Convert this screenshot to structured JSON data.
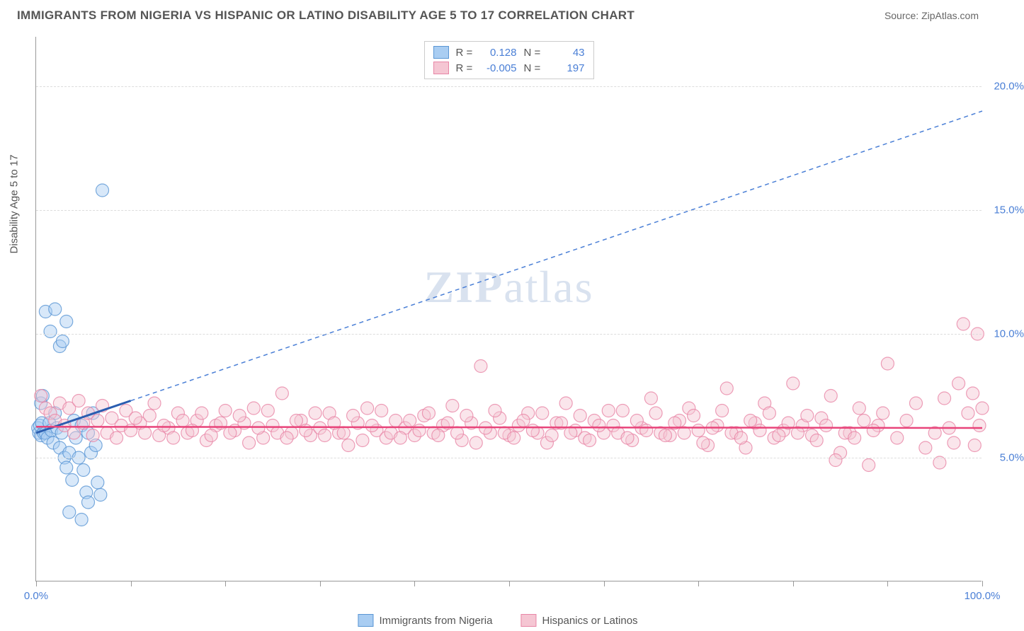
{
  "header": {
    "title": "IMMIGRANTS FROM NIGERIA VS HISPANIC OR LATINO DISABILITY AGE 5 TO 17 CORRELATION CHART",
    "source": "Source: ZipAtlas.com"
  },
  "watermark": {
    "text1": "ZIP",
    "text2": "atlas"
  },
  "chart": {
    "type": "scatter",
    "ylabel": "Disability Age 5 to 17",
    "xlim": [
      0,
      100
    ],
    "ylim": [
      0,
      22
    ],
    "xticks": [
      0,
      10,
      20,
      30,
      40,
      50,
      60,
      70,
      80,
      90,
      100
    ],
    "xtick_labels": {
      "0": "0.0%",
      "100": "100.0%"
    },
    "yticks": [
      5,
      10,
      15,
      20
    ],
    "ytick_labels": {
      "5": "5.0%",
      "10": "10.0%",
      "15": "15.0%",
      "20": "20.0%"
    },
    "background_color": "#ffffff",
    "grid_color": "#dddddd",
    "axis_color": "#999999",
    "label_color": "#4a7fd6",
    "text_color": "#555555",
    "marker_radius": 9,
    "marker_opacity": 0.45,
    "series": [
      {
        "name": "Immigrants from Nigeria",
        "fill_color": "#a9cdf2",
        "stroke_color": "#5a96d4",
        "R": "0.128",
        "N": "43",
        "trend": {
          "x1": 0,
          "y1": 6.0,
          "x2": 10,
          "y2": 7.3,
          "solid_color": "#2a5db0",
          "solid_width": 3,
          "dash_color": "#4a7fd6",
          "dash_x2": 100,
          "dash_y2": 19.0
        },
        "points": [
          [
            0.2,
            6.2
          ],
          [
            0.3,
            6.0
          ],
          [
            0.4,
            6.3
          ],
          [
            0.5,
            5.9
          ],
          [
            0.6,
            6.4
          ],
          [
            0.8,
            6.0
          ],
          [
            0.5,
            7.2
          ],
          [
            0.7,
            7.5
          ],
          [
            1.0,
            6.0
          ],
          [
            1.2,
            5.8
          ],
          [
            1.4,
            6.4
          ],
          [
            1.6,
            6.1
          ],
          [
            1.8,
            5.6
          ],
          [
            2.0,
            6.8
          ],
          [
            2.2,
            6.2
          ],
          [
            2.5,
            5.4
          ],
          [
            2.7,
            6.0
          ],
          [
            3.0,
            5.0
          ],
          [
            3.2,
            4.6
          ],
          [
            3.5,
            5.2
          ],
          [
            3.8,
            4.1
          ],
          [
            4.0,
            6.5
          ],
          [
            4.2,
            5.8
          ],
          [
            4.5,
            5.0
          ],
          [
            4.8,
            6.3
          ],
          [
            5.0,
            4.5
          ],
          [
            5.3,
            3.6
          ],
          [
            5.5,
            6.0
          ],
          [
            5.8,
            5.2
          ],
          [
            6.0,
            6.8
          ],
          [
            6.3,
            5.5
          ],
          [
            6.5,
            4.0
          ],
          [
            6.8,
            3.5
          ],
          [
            7.0,
            15.8
          ],
          [
            1.0,
            10.9
          ],
          [
            1.5,
            10.1
          ],
          [
            2.0,
            11.0
          ],
          [
            2.5,
            9.5
          ],
          [
            2.8,
            9.7
          ],
          [
            3.2,
            10.5
          ],
          [
            3.5,
            2.8
          ],
          [
            4.8,
            2.5
          ],
          [
            5.5,
            3.2
          ]
        ]
      },
      {
        "name": "Hispanics or Latinos",
        "fill_color": "#f5c6d3",
        "stroke_color": "#e886a6",
        "R": "-0.005",
        "N": "197",
        "trend": {
          "x1": 0,
          "y1": 6.25,
          "x2": 100,
          "y2": 6.2,
          "solid_color": "#e8447a",
          "solid_width": 2.5
        },
        "points": [
          [
            0.5,
            7.5
          ],
          [
            1,
            7.0
          ],
          [
            1.5,
            6.8
          ],
          [
            2,
            6.5
          ],
          [
            2.5,
            7.2
          ],
          [
            3,
            6.3
          ],
          [
            3.5,
            7.0
          ],
          [
            4,
            6.0
          ],
          [
            4.5,
            7.3
          ],
          [
            5,
            6.4
          ],
          [
            5.5,
            6.8
          ],
          [
            6,
            5.9
          ],
          [
            6.5,
            6.5
          ],
          [
            7,
            7.1
          ],
          [
            7.5,
            6.0
          ],
          [
            8,
            6.6
          ],
          [
            8.5,
            5.8
          ],
          [
            9,
            6.3
          ],
          [
            9.5,
            6.9
          ],
          [
            10,
            6.1
          ],
          [
            11,
            6.4
          ],
          [
            12,
            6.7
          ],
          [
            13,
            5.9
          ],
          [
            14,
            6.2
          ],
          [
            15,
            6.8
          ],
          [
            16,
            6.0
          ],
          [
            17,
            6.5
          ],
          [
            18,
            5.7
          ],
          [
            19,
            6.3
          ],
          [
            20,
            6.9
          ],
          [
            21,
            6.1
          ],
          [
            22,
            6.4
          ],
          [
            23,
            7.0
          ],
          [
            24,
            5.8
          ],
          [
            25,
            6.3
          ],
          [
            26,
            7.6
          ],
          [
            27,
            6.0
          ],
          [
            28,
            6.5
          ],
          [
            29,
            5.9
          ],
          [
            30,
            6.2
          ],
          [
            31,
            6.8
          ],
          [
            32,
            6.0
          ],
          [
            33,
            5.5
          ],
          [
            34,
            6.4
          ],
          [
            35,
            7.0
          ],
          [
            36,
            6.1
          ],
          [
            37,
            5.8
          ],
          [
            38,
            6.5
          ],
          [
            39,
            6.2
          ],
          [
            40,
            5.9
          ],
          [
            41,
            6.7
          ],
          [
            42,
            6.0
          ],
          [
            43,
            6.3
          ],
          [
            44,
            7.1
          ],
          [
            45,
            5.7
          ],
          [
            46,
            6.4
          ],
          [
            47,
            8.7
          ],
          [
            48,
            6.0
          ],
          [
            49,
            6.6
          ],
          [
            50,
            5.9
          ],
          [
            51,
            6.3
          ],
          [
            52,
            6.8
          ],
          [
            53,
            6.0
          ],
          [
            54,
            5.6
          ],
          [
            55,
            6.4
          ],
          [
            56,
            7.2
          ],
          [
            57,
            6.1
          ],
          [
            58,
            5.8
          ],
          [
            59,
            6.5
          ],
          [
            60,
            6.0
          ],
          [
            61,
            6.3
          ],
          [
            62,
            6.9
          ],
          [
            63,
            5.7
          ],
          [
            64,
            6.2
          ],
          [
            65,
            7.4
          ],
          [
            66,
            6.0
          ],
          [
            67,
            5.9
          ],
          [
            68,
            6.5
          ],
          [
            69,
            7.0
          ],
          [
            70,
            6.1
          ],
          [
            71,
            5.5
          ],
          [
            72,
            6.3
          ],
          [
            73,
            7.8
          ],
          [
            74,
            6.0
          ],
          [
            75,
            5.4
          ],
          [
            76,
            6.4
          ],
          [
            77,
            7.2
          ],
          [
            78,
            5.8
          ],
          [
            79,
            6.1
          ],
          [
            80,
            8.0
          ],
          [
            81,
            6.3
          ],
          [
            82,
            5.9
          ],
          [
            83,
            6.6
          ],
          [
            84,
            7.5
          ],
          [
            85,
            5.2
          ],
          [
            86,
            6.0
          ],
          [
            87,
            7.0
          ],
          [
            88,
            4.7
          ],
          [
            89,
            6.3
          ],
          [
            90,
            8.8
          ],
          [
            91,
            5.8
          ],
          [
            92,
            6.5
          ],
          [
            93,
            7.2
          ],
          [
            94,
            5.4
          ],
          [
            95,
            6.0
          ],
          [
            95.5,
            4.8
          ],
          [
            96,
            7.4
          ],
          [
            96.5,
            6.2
          ],
          [
            97,
            5.6
          ],
          [
            97.5,
            8.0
          ],
          [
            98,
            10.4
          ],
          [
            98.5,
            6.8
          ],
          [
            99,
            7.6
          ],
          [
            99.2,
            5.5
          ],
          [
            99.5,
            10.0
          ],
          [
            99.7,
            6.3
          ],
          [
            100,
            7.0
          ],
          [
            10.5,
            6.6
          ],
          [
            11.5,
            6.0
          ],
          [
            12.5,
            7.2
          ],
          [
            13.5,
            6.3
          ],
          [
            14.5,
            5.8
          ],
          [
            15.5,
            6.5
          ],
          [
            16.5,
            6.1
          ],
          [
            17.5,
            6.8
          ],
          [
            18.5,
            5.9
          ],
          [
            19.5,
            6.4
          ],
          [
            20.5,
            6.0
          ],
          [
            21.5,
            6.7
          ],
          [
            22.5,
            5.6
          ],
          [
            23.5,
            6.2
          ],
          [
            24.5,
            6.9
          ],
          [
            25.5,
            6.0
          ],
          [
            26.5,
            5.8
          ],
          [
            27.5,
            6.5
          ],
          [
            28.5,
            6.1
          ],
          [
            29.5,
            6.8
          ],
          [
            30.5,
            5.9
          ],
          [
            31.5,
            6.4
          ],
          [
            32.5,
            6.0
          ],
          [
            33.5,
            6.7
          ],
          [
            34.5,
            5.7
          ],
          [
            35.5,
            6.3
          ],
          [
            36.5,
            6.9
          ],
          [
            37.5,
            6.0
          ],
          [
            38.5,
            5.8
          ],
          [
            39.5,
            6.5
          ],
          [
            40.5,
            6.1
          ],
          [
            41.5,
            6.8
          ],
          [
            42.5,
            5.9
          ],
          [
            43.5,
            6.4
          ],
          [
            44.5,
            6.0
          ],
          [
            45.5,
            6.7
          ],
          [
            46.5,
            5.6
          ],
          [
            47.5,
            6.2
          ],
          [
            48.5,
            6.9
          ],
          [
            49.5,
            6.0
          ],
          [
            50.5,
            5.8
          ],
          [
            51.5,
            6.5
          ],
          [
            52.5,
            6.1
          ],
          [
            53.5,
            6.8
          ],
          [
            54.5,
            5.9
          ],
          [
            55.5,
            6.4
          ],
          [
            56.5,
            6.0
          ],
          [
            57.5,
            6.7
          ],
          [
            58.5,
            5.7
          ],
          [
            59.5,
            6.3
          ],
          [
            60.5,
            6.9
          ],
          [
            61.5,
            6.0
          ],
          [
            62.5,
            5.8
          ],
          [
            63.5,
            6.5
          ],
          [
            64.5,
            6.1
          ],
          [
            65.5,
            6.8
          ],
          [
            66.5,
            5.9
          ],
          [
            67.5,
            6.4
          ],
          [
            68.5,
            6.0
          ],
          [
            69.5,
            6.7
          ],
          [
            70.5,
            5.6
          ],
          [
            71.5,
            6.2
          ],
          [
            72.5,
            6.9
          ],
          [
            73.5,
            6.0
          ],
          [
            74.5,
            5.8
          ],
          [
            75.5,
            6.5
          ],
          [
            76.5,
            6.1
          ],
          [
            77.5,
            6.8
          ],
          [
            78.5,
            5.9
          ],
          [
            79.5,
            6.4
          ],
          [
            80.5,
            6.0
          ],
          [
            81.5,
            6.7
          ],
          [
            82.5,
            5.7
          ],
          [
            83.5,
            6.3
          ],
          [
            84.5,
            4.9
          ],
          [
            85.5,
            6.0
          ],
          [
            86.5,
            5.8
          ],
          [
            87.5,
            6.5
          ],
          [
            88.5,
            6.1
          ],
          [
            89.5,
            6.8
          ]
        ]
      }
    ]
  },
  "legend": {
    "series1_label": "Immigrants from Nigeria",
    "series2_label": "Hispanics or Latinos",
    "r_label": "R =",
    "n_label": "N ="
  }
}
